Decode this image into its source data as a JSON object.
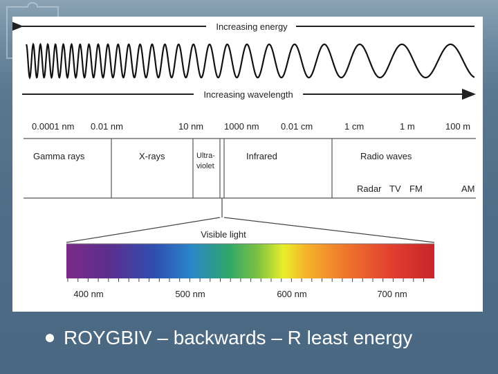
{
  "diagram": {
    "energy_label": "Increasing energy",
    "wavelength_label": "Increasing wavelength",
    "scale_labels": [
      "0.0001 nm",
      "0.01 nm",
      "10 nm",
      "1000 nm",
      "0.01 cm",
      "1 cm",
      "1 m",
      "100 m"
    ],
    "regions": {
      "gamma": "Gamma rays",
      "xray": "X-rays",
      "uv_line1": "Ultra-",
      "uv_line2": "violet",
      "infrared": "Infrared",
      "radio": "Radio waves"
    },
    "radio_bands": [
      "Radar",
      "TV",
      "FM",
      "AM"
    ],
    "visible_label": "Visible light",
    "visible_ticks": [
      "400 nm",
      "500 nm",
      "600 nm",
      "700 nm"
    ]
  },
  "bullet": {
    "text": "ROYGBIV – backwards – R least energy"
  }
}
